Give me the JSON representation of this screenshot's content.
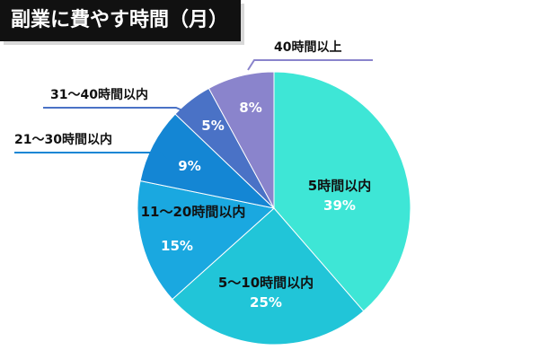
{
  "chart_data": {
    "type": "pie",
    "title": "副業に費やす時間（月）",
    "slices": [
      {
        "label": "5時間以内",
        "value": 39,
        "value_label": "39%",
        "color": "#3ee6d6"
      },
      {
        "label": "5〜10時間以内",
        "value": 25,
        "value_label": "25%",
        "color": "#21c5d8"
      },
      {
        "label": "11〜20時間以内",
        "value": 15,
        "value_label": "15%",
        "color": "#1aa8e0"
      },
      {
        "label": "21〜30時間以内",
        "value": 9,
        "value_label": "9%",
        "color": "#1486d4"
      },
      {
        "label": "31〜40時間以内",
        "value": 5,
        "value_label": "5%",
        "color": "#4a72c6"
      },
      {
        "label": "40時間以上",
        "value": 8,
        "value_label": "8%",
        "color": "#8a84cc"
      }
    ],
    "start_angle_deg": 0,
    "direction": "clockwise"
  }
}
